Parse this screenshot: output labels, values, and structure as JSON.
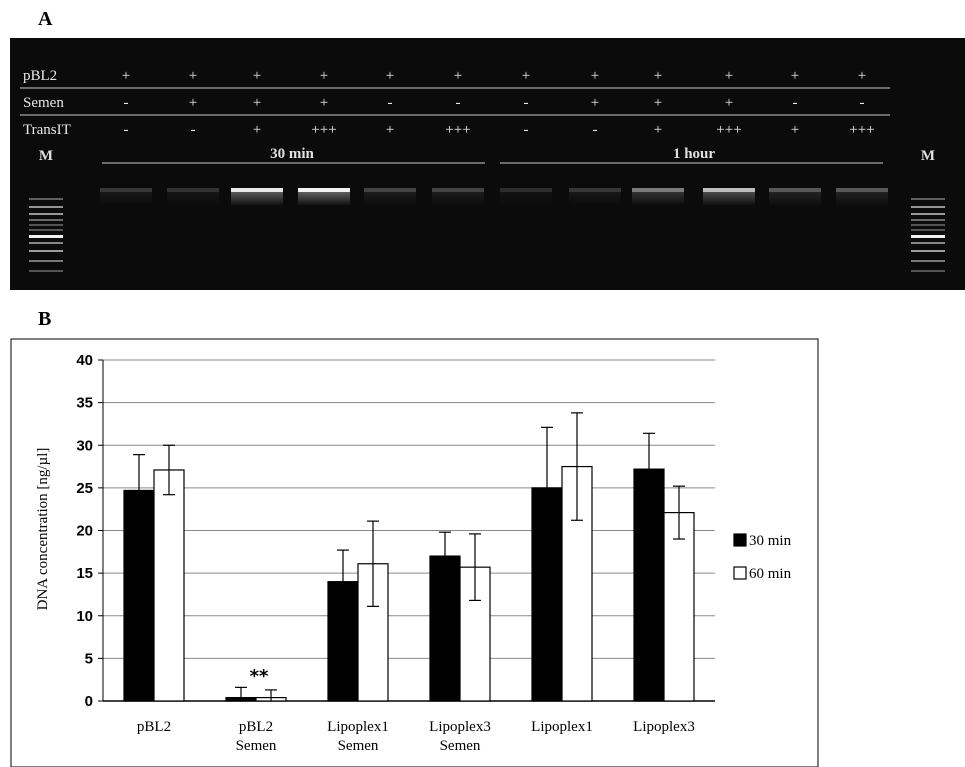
{
  "panel_a": {
    "letter": "A",
    "rows": [
      {
        "label": "pBL2",
        "symbols": [
          "+",
          "+",
          "+",
          "+",
          "+",
          "+",
          "+",
          "+",
          "+",
          "+",
          "+",
          "+"
        ]
      },
      {
        "label": "Semen",
        "symbols": [
          "-",
          "+",
          "+",
          "+",
          "-",
          "-",
          "-",
          "+",
          "+",
          "+",
          "-",
          "-"
        ]
      },
      {
        "label": "TransIT",
        "symbols": [
          "-",
          "-",
          "+",
          "+++",
          "+",
          "+++",
          "-",
          "-",
          "+",
          "+++",
          "+",
          "+++"
        ]
      }
    ],
    "group_labels": [
      "30 min",
      "1 hour"
    ],
    "marker_label": "M",
    "lane_bands": [
      0.15,
      0.12,
      0.95,
      1.0,
      0.2,
      0.2,
      0.1,
      0.15,
      0.45,
      0.75,
      0.3,
      0.3
    ]
  },
  "panel_b": {
    "letter": "B",
    "significance_mark": "**"
  },
  "chart_data": {
    "type": "bar",
    "ylabel": "DNA concentration [ng/µl]",
    "ylim": [
      0,
      40
    ],
    "yticks": [
      0,
      5,
      10,
      15,
      20,
      25,
      30,
      35,
      40
    ],
    "grid": true,
    "legend_position": "right",
    "categories": [
      [
        "pBL2"
      ],
      [
        "pBL2",
        "Semen"
      ],
      [
        "Lipoplex1",
        "Semen"
      ],
      [
        "Lipoplex3",
        "Semen"
      ],
      [
        "Lipoplex1"
      ],
      [
        "Lipoplex3"
      ]
    ],
    "series": [
      {
        "name": "30 min",
        "color": "#000000",
        "values": [
          24.7,
          0.4,
          14.0,
          17.0,
          25.0,
          27.2
        ],
        "errors": [
          4.2,
          1.2,
          3.7,
          2.8,
          7.1,
          4.2
        ]
      },
      {
        "name": "60 min",
        "color": "#ffffff",
        "values": [
          27.1,
          0.4,
          16.1,
          15.7,
          27.5,
          22.1
        ],
        "errors": [
          2.9,
          0.9,
          5.0,
          3.9,
          6.3,
          3.1
        ]
      }
    ]
  }
}
